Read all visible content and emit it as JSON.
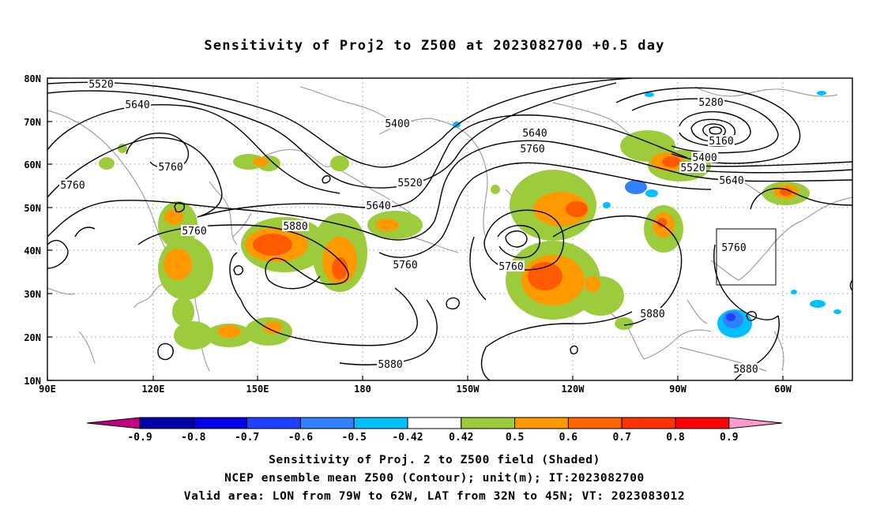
{
  "title": "Sensitivity of Proj2 to Z500 at 2023082700 +0.5 day",
  "map": {
    "lat_labels": [
      "80N",
      "70N",
      "60N",
      "50N",
      "40N",
      "30N",
      "20N",
      "10N"
    ],
    "lon_labels": [
      "90E",
      "120E",
      "150E",
      "180",
      "150W",
      "120W",
      "90W",
      "60W"
    ],
    "contour_labels": [
      {
        "text": "5520",
        "id": "c5520-a"
      },
      {
        "text": "5640",
        "id": "c5640-a"
      },
      {
        "text": "5760",
        "id": "c5760-a"
      },
      {
        "text": "5760",
        "id": "c5760-b"
      },
      {
        "text": "5760",
        "id": "c5760-c"
      },
      {
        "text": "5880",
        "id": "c5880-a"
      },
      {
        "text": "5400",
        "id": "c5400-a"
      },
      {
        "text": "5520",
        "id": "c5520-b"
      },
      {
        "text": "5640",
        "id": "c5640-b"
      },
      {
        "text": "5760",
        "id": "c5760-d"
      },
      {
        "text": "5640",
        "id": "c5640-c"
      },
      {
        "text": "5760",
        "id": "c5760-e"
      },
      {
        "text": "5760",
        "id": "c5760-f"
      },
      {
        "text": "5880",
        "id": "c5880-b"
      },
      {
        "text": "5880",
        "id": "c5880-c"
      },
      {
        "text": "5280",
        "id": "c5280-a"
      },
      {
        "text": "5160",
        "id": "c5160-a"
      },
      {
        "text": "5400",
        "id": "c5400-b"
      },
      {
        "text": "5520",
        "id": "c5520-c"
      },
      {
        "text": "5640",
        "id": "c5640-d"
      },
      {
        "text": "5760",
        "id": "c5760-g"
      },
      {
        "text": "5880",
        "id": "c5880-d"
      }
    ],
    "valid_area": {
      "lon": [
        "79W",
        "62W"
      ],
      "lat": [
        "32N",
        "45N"
      ]
    }
  },
  "colorbar": {
    "labels": [
      "-0.9",
      "-0.8",
      "-0.7",
      "-0.6",
      "-0.5",
      "-0.42",
      "0.42",
      "0.5",
      "0.6",
      "0.7",
      "0.8",
      "0.9"
    ],
    "colors": [
      "#c0007f",
      "#0000a8",
      "#0000e0",
      "#2040ff",
      "#3080ff",
      "#00c0ff",
      "#ffffff",
      "#9ccc3c",
      "#ff9900",
      "#ff6600",
      "#ff3300",
      "#ff0000",
      "#ff99cc"
    ]
  },
  "captions": {
    "line1": "Sensitivity of Proj. 2 to Z500 field (Shaded)",
    "line2": "NCEP ensemble mean Z500 (Contour); unit(m); IT:2023082700",
    "line3": "Valid area: LON from 79W to 62W, LAT from 32N to 45N; VT: 2023083012"
  }
}
